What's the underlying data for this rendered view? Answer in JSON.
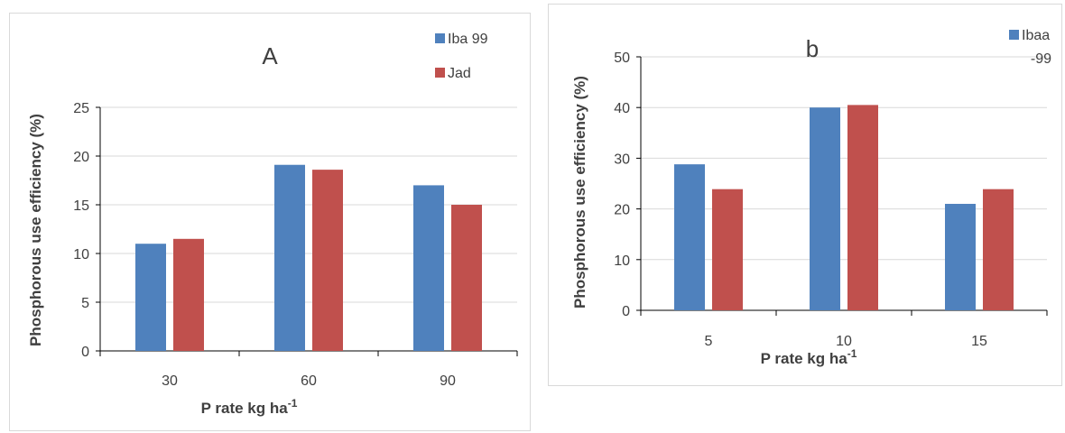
{
  "chart_data": [
    {
      "type": "bar",
      "title": "A",
      "categories": [
        "30",
        "60",
        "90"
      ],
      "series": [
        {
          "name": "Iba 99",
          "values": [
            11.0,
            19.1,
            17.0
          ],
          "color": "#4f81bd"
        },
        {
          "name": "Jad",
          "values": [
            11.5,
            18.6,
            15.0
          ],
          "color": "#c0504d"
        }
      ],
      "xlabel": "P rate kg ha",
      "xlabel_sup": "-1",
      "ylabel": "Phosphorous use efficiency (%)",
      "ylim": [
        0,
        25
      ],
      "yticks": [
        "0",
        "5",
        "10",
        "15",
        "20",
        "25"
      ],
      "grid": true,
      "legend": "top-right"
    },
    {
      "type": "bar",
      "title": "b",
      "categories": [
        "5",
        "10",
        "15"
      ],
      "series": [
        {
          "name": "Ibaa -99",
          "name_lines": [
            "Ibaa",
            "-99"
          ],
          "values": [
            28.8,
            40.0,
            21.0
          ],
          "color": "#4f81bd"
        },
        {
          "name": "",
          "values": [
            23.9,
            40.5,
            23.9
          ],
          "color": "#c0504d"
        }
      ],
      "xlabel": "P rate kg ha",
      "xlabel_sup": "-1",
      "ylabel": "Phosphorous use efficiency (%)",
      "ylim": [
        0,
        50
      ],
      "yticks": [
        "0",
        "10",
        "20",
        "30",
        "40",
        "50"
      ],
      "grid": true,
      "legend": "top-right"
    }
  ]
}
